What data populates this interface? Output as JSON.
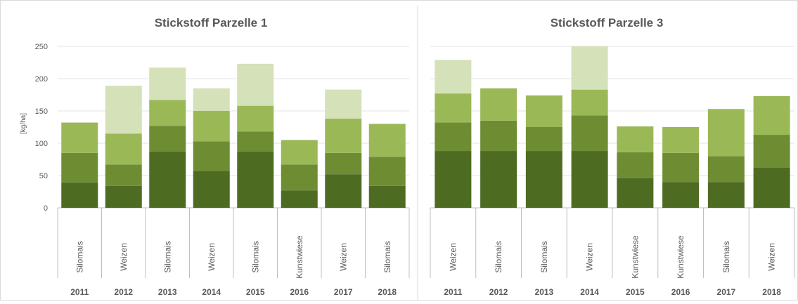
{
  "colors": {
    "segments": [
      "#4e6b22",
      "#6e8d33",
      "#9bb857",
      "#d5e1b8"
    ],
    "grid": "#e3e3e3",
    "axis": "#bfbfbf",
    "text": "#595959"
  },
  "chart_data": [
    {
      "type": "bar",
      "stacked": true,
      "title": "Stickstoff Parzelle 1",
      "ylabel": "[kg/ha]",
      "ylim": [
        0,
        250
      ],
      "yticks": [
        0,
        50,
        100,
        150,
        200,
        250
      ],
      "grid": true,
      "categories": [
        "Silomais",
        "Weizen",
        "Silomais",
        "Weizen",
        "Silomais",
        "Kunstwiese",
        "Weizen",
        "Silomais"
      ],
      "years": [
        "2011",
        "2012",
        "2013",
        "2014",
        "2015",
        "2016",
        "2017",
        "2018"
      ],
      "segments": [
        [
          39,
          46,
          47
        ],
        [
          34,
          33,
          48,
          40,
          34
        ],
        [
          87,
          40,
          40,
          50
        ],
        [
          57,
          46,
          47,
          35
        ],
        [
          87,
          31,
          40,
          65
        ],
        [
          27,
          40,
          38
        ],
        [
          52,
          33,
          53,
          45
        ],
        [
          34,
          45,
          51
        ]
      ],
      "totals": [
        132,
        189,
        217,
        185,
        223,
        105,
        183,
        130
      ]
    },
    {
      "type": "bar",
      "stacked": true,
      "title": "Stickstoff Parzelle 3",
      "ylabel": "",
      "ylim": [
        0,
        250
      ],
      "yticks": [
        0,
        50,
        100,
        150,
        200,
        250
      ],
      "grid": true,
      "categories": [
        "Weizen",
        "Silomais",
        "Silomais",
        "Weizen",
        "Kunstwiese",
        "Kunstwiese",
        "Silomais",
        "Weizen"
      ],
      "years": [
        "2011",
        "2012",
        "2013",
        "2014",
        "2015",
        "2016",
        "2017",
        "2018"
      ],
      "segments": [
        [
          88,
          44,
          45,
          52
        ],
        [
          88,
          47,
          50
        ],
        [
          88,
          37,
          49
        ],
        [
          88,
          55,
          40,
          43,
          27
        ],
        [
          46,
          40,
          40
        ],
        [
          40,
          45,
          40
        ],
        [
          40,
          40,
          73
        ],
        [
          62,
          51,
          60
        ]
      ],
      "totals": [
        229,
        185,
        174,
        253,
        126,
        125,
        153,
        173
      ]
    }
  ]
}
